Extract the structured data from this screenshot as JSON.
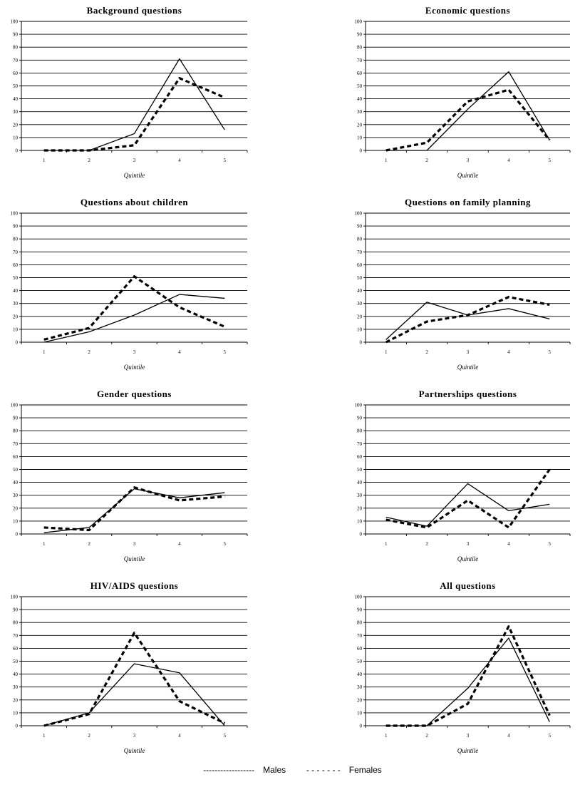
{
  "chart_data": [
    {
      "type": "line",
      "title": "Background questions",
      "xlabel": "Quintile",
      "x": [
        1,
        2,
        3,
        4,
        5
      ],
      "ylim": [
        0,
        100
      ],
      "yticks": [
        0,
        10,
        20,
        30,
        40,
        50,
        60,
        70,
        80,
        90,
        100
      ],
      "series": [
        {
          "name": "Males",
          "values": [
            0,
            0,
            13,
            71,
            16
          ]
        },
        {
          "name": "Females",
          "values": [
            0,
            0,
            4,
            56,
            41
          ]
        }
      ]
    },
    {
      "type": "line",
      "title": "Economic questions",
      "xlabel": "Quintile",
      "x": [
        1,
        2,
        3,
        4,
        5
      ],
      "ylim": [
        0,
        100
      ],
      "yticks": [
        0,
        10,
        20,
        30,
        40,
        50,
        60,
        70,
        80,
        90,
        100
      ],
      "series": [
        {
          "name": "Males",
          "values": [
            0,
            0,
            32,
            61,
            8
          ]
        },
        {
          "name": "Females",
          "values": [
            0,
            6,
            38,
            47,
            8
          ]
        }
      ]
    },
    {
      "type": "line",
      "title": "Questions about children",
      "xlabel": "Quintile",
      "x": [
        1,
        2,
        3,
        4,
        5
      ],
      "ylim": [
        0,
        100
      ],
      "yticks": [
        0,
        10,
        20,
        30,
        40,
        50,
        60,
        70,
        80,
        90,
        100
      ],
      "series": [
        {
          "name": "Males",
          "values": [
            0,
            8,
            21,
            37,
            34
          ]
        },
        {
          "name": "Females",
          "values": [
            2,
            11,
            51,
            27,
            12
          ]
        }
      ]
    },
    {
      "type": "line",
      "title": "Questions on family planning",
      "xlabel": "Quintile",
      "x": [
        1,
        2,
        3,
        4,
        5
      ],
      "ylim": [
        0,
        100
      ],
      "yticks": [
        0,
        10,
        20,
        30,
        40,
        50,
        60,
        70,
        80,
        90,
        100
      ],
      "series": [
        {
          "name": "Males",
          "values": [
            2,
            31,
            21,
            26,
            18
          ]
        },
        {
          "name": "Females",
          "values": [
            0,
            16,
            21,
            35,
            29
          ]
        }
      ]
    },
    {
      "type": "line",
      "title": "Gender questions",
      "xlabel": "Quintile",
      "x": [
        1,
        2,
        3,
        4,
        5
      ],
      "ylim": [
        0,
        100
      ],
      "yticks": [
        0,
        10,
        20,
        30,
        40,
        50,
        60,
        70,
        80,
        90,
        100
      ],
      "series": [
        {
          "name": "Males",
          "values": [
            1,
            5,
            35,
            28,
            32
          ]
        },
        {
          "name": "Females",
          "values": [
            5,
            3,
            36,
            26,
            29
          ]
        }
      ]
    },
    {
      "type": "line",
      "title": "Partnerships questions",
      "xlabel": "Quintile",
      "x": [
        1,
        2,
        3,
        4,
        5
      ],
      "ylim": [
        0,
        100
      ],
      "yticks": [
        0,
        10,
        20,
        30,
        40,
        50,
        60,
        70,
        80,
        90,
        100
      ],
      "series": [
        {
          "name": "Males",
          "values": [
            13,
            6,
            39,
            18,
            23
          ]
        },
        {
          "name": "Females",
          "values": [
            11,
            5,
            26,
            5,
            50
          ]
        }
      ]
    },
    {
      "type": "line",
      "title": "HIV/AIDS questions",
      "xlabel": "Quintile",
      "x": [
        1,
        2,
        3,
        4,
        5
      ],
      "ylim": [
        0,
        100
      ],
      "yticks": [
        0,
        10,
        20,
        30,
        40,
        50,
        60,
        70,
        80,
        90,
        100
      ],
      "series": [
        {
          "name": "Males",
          "values": [
            0,
            10,
            48,
            41,
            0
          ]
        },
        {
          "name": "Females",
          "values": [
            0,
            9,
            72,
            19,
            2
          ]
        }
      ]
    },
    {
      "type": "line",
      "title": "All questions",
      "xlabel": "Quintile",
      "x": [
        1,
        2,
        3,
        4,
        5
      ],
      "ylim": [
        0,
        100
      ],
      "yticks": [
        0,
        10,
        20,
        30,
        40,
        50,
        60,
        70,
        80,
        90,
        100
      ],
      "series": [
        {
          "name": "Males",
          "values": [
            0,
            0,
            29,
            68,
            3
          ]
        },
        {
          "name": "Females",
          "values": [
            0,
            0,
            17,
            77,
            8
          ]
        }
      ]
    }
  ],
  "legend": {
    "males_label": "Males",
    "females_label": "Females",
    "males_swatch": "------------------",
    "females_swatch": "- - - - - - -"
  }
}
